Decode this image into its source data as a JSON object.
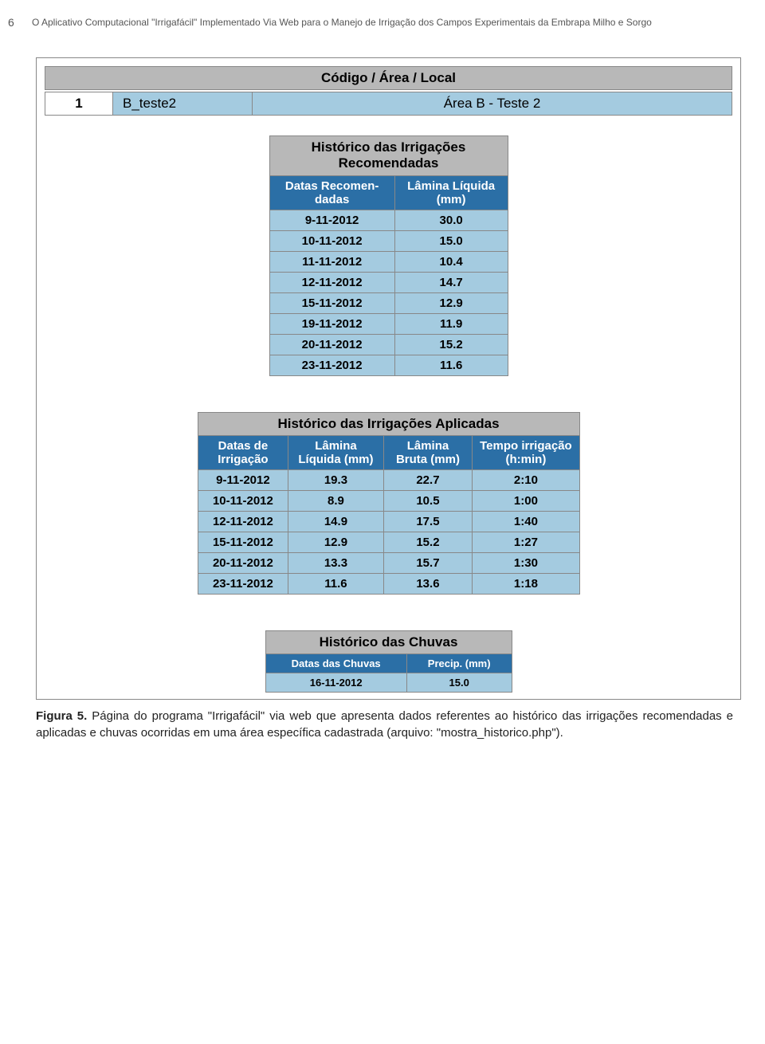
{
  "page_number": "6",
  "header_text": "O Aplicativo Computacional \"Irrigafácil\" Implementado Via Web para o Manejo de Irrigação dos Campos Experimentais da Embrapa Milho e Sorgo",
  "colors": {
    "strip_gray": "#b8b8b8",
    "head_blue": "#2b6fa6",
    "cell_light": "#a4cbe0",
    "border": "#888888"
  },
  "top_strip_label": "Código / Área / Local",
  "info_row": {
    "idx": "1",
    "code": "B_teste2",
    "local": "Área B - Teste 2"
  },
  "recommended_table": {
    "title_lines": [
      "Histórico das Irrigações",
      "Recomendadas"
    ],
    "columns": [
      "Datas Recomen- dadas",
      "Lâmina Líquida (mm)"
    ],
    "rows": [
      [
        "9-11-2012",
        "30.0"
      ],
      [
        "10-11-2012",
        "15.0"
      ],
      [
        "11-11-2012",
        "10.4"
      ],
      [
        "12-11-2012",
        "14.7"
      ],
      [
        "15-11-2012",
        "12.9"
      ],
      [
        "19-11-2012",
        "11.9"
      ],
      [
        "20-11-2012",
        "15.2"
      ],
      [
        "23-11-2012",
        "11.6"
      ]
    ]
  },
  "applied_table": {
    "title": "Histórico das Irrigações Aplicadas",
    "columns": [
      "Datas de Irrigação",
      "Lâmina Líquida (mm)",
      "Lâmina Bruta (mm)",
      "Tempo irrigação (h:min)"
    ],
    "rows": [
      [
        "9-11-2012",
        "19.3",
        "22.7",
        "2:10"
      ],
      [
        "10-11-2012",
        "8.9",
        "10.5",
        "1:00"
      ],
      [
        "12-11-2012",
        "14.9",
        "17.5",
        "1:40"
      ],
      [
        "15-11-2012",
        "12.9",
        "15.2",
        "1:27"
      ],
      [
        "20-11-2012",
        "13.3",
        "15.7",
        "1:30"
      ],
      [
        "23-11-2012",
        "11.6",
        "13.6",
        "1:18"
      ]
    ]
  },
  "rain_table": {
    "title": "Histórico das Chuvas",
    "columns": [
      "Datas das Chuvas",
      "Precip. (mm)"
    ],
    "rows": [
      [
        "16-11-2012",
        "15.0"
      ]
    ]
  },
  "caption_bold": "Figura 5.",
  "caption_rest": " Página do programa \"Irrigafácil\" via web que apresenta dados referentes ao histórico das irrigações recomendadas e aplicadas e chuvas ocorridas em uma área específica cadastrada (arquivo: \"mostra_historico.php\")."
}
